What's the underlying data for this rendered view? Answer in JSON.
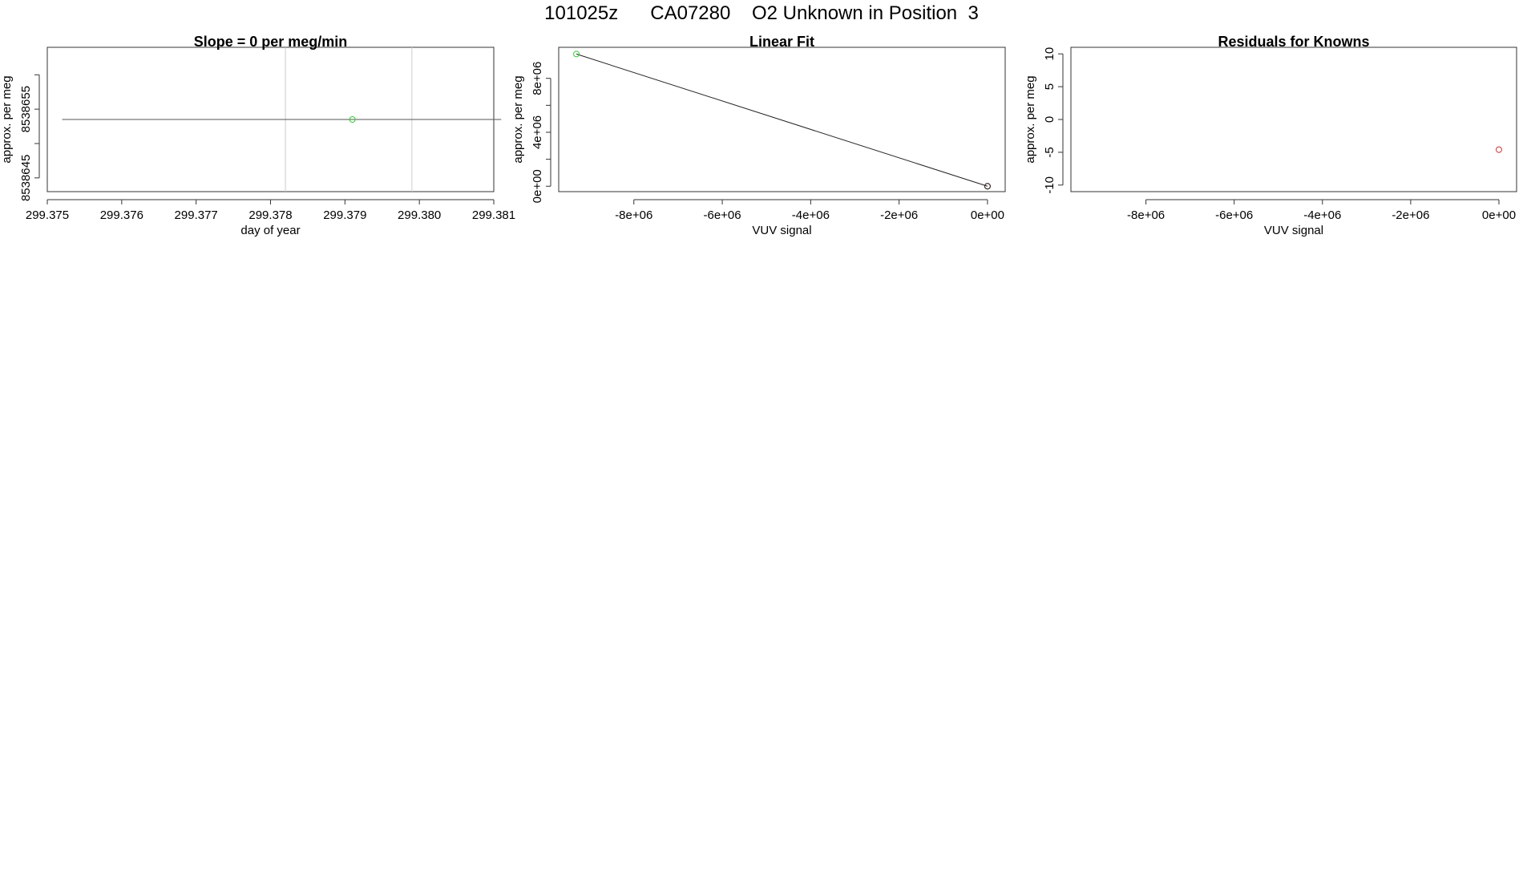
{
  "title": "101025z      CA07280    O2 Unknown in Position  3",
  "chart_data": [
    {
      "type": "line",
      "title": "Slope =  0  per meg/min",
      "xlabel": "day of year",
      "ylabel": "approx. per meg",
      "xlim": [
        299.375,
        299.381
      ],
      "ylim": [
        8538643,
        8538664
      ],
      "x_ticks": [
        "299.375",
        "299.376",
        "299.377",
        "299.378",
        "299.379",
        "299.380",
        "299.381"
      ],
      "x_tick_values": [
        299.375,
        299.376,
        299.377,
        299.378,
        299.379,
        299.38,
        299.381
      ],
      "y_ticks": [
        "8538645",
        "",
        "8538655",
        ""
      ],
      "y_tick_values": [
        8538645,
        8538650,
        8538655,
        8538660
      ],
      "vlines": [
        299.3782,
        299.3799
      ],
      "series": [
        {
          "color": "#555555",
          "x": [
            299.3752,
            299.3811
          ],
          "y": [
            8538653.5,
            8538653.5
          ]
        }
      ],
      "points": [
        {
          "x": 299.3791,
          "y": 8538653.5,
          "color": "#33cc33"
        }
      ],
      "grid": false
    },
    {
      "type": "line",
      "title": "Linear Fit",
      "xlabel": "VUV signal",
      "ylabel": "approx. per meg",
      "xlim": [
        -9700000,
        400000
      ],
      "ylim": [
        -400000,
        10300000
      ],
      "x_ticks": [
        "-8e+06",
        "-6e+06",
        "-4e+06",
        "-2e+06",
        "0e+00"
      ],
      "x_tick_values": [
        -8000000,
        -6000000,
        -4000000,
        -2000000,
        0
      ],
      "y_ticks": [
        "0e+00",
        "4e+06",
        "8e+06"
      ],
      "y_tick_values": [
        0,
        4000000,
        8000000
      ],
      "y_minor_ticks": [
        2000000,
        6000000
      ],
      "series": [
        {
          "color": "#222222",
          "x": [
            -9300000,
            0
          ],
          "y": [
            9800000,
            0
          ]
        }
      ],
      "points": [
        {
          "x": -9300000,
          "y": 9800000,
          "color": "#33cc33"
        },
        {
          "x": 0,
          "y": 0,
          "color": "#cc3333"
        },
        {
          "x": 0,
          "y": 0,
          "color": "#222222"
        }
      ],
      "grid": false
    },
    {
      "type": "scatter",
      "title": "Residuals for Knowns",
      "xlabel": "VUV signal",
      "ylabel": "approx. per meg",
      "xlim": [
        -9700000,
        400000
      ],
      "ylim": [
        -11,
        11
      ],
      "x_ticks": [
        "-8e+06",
        "-6e+06",
        "-4e+06",
        "-2e+06",
        "0e+00"
      ],
      "x_tick_values": [
        -8000000,
        -6000000,
        -4000000,
        -2000000,
        0
      ],
      "y_ticks": [
        "-10",
        "-5",
        "0",
        "5",
        "10"
      ],
      "y_tick_values": [
        -10,
        -5,
        0,
        5,
        10
      ],
      "points": [
        {
          "x": 0,
          "y": -4.6,
          "color": "#cc3333"
        }
      ],
      "grid": false
    }
  ]
}
